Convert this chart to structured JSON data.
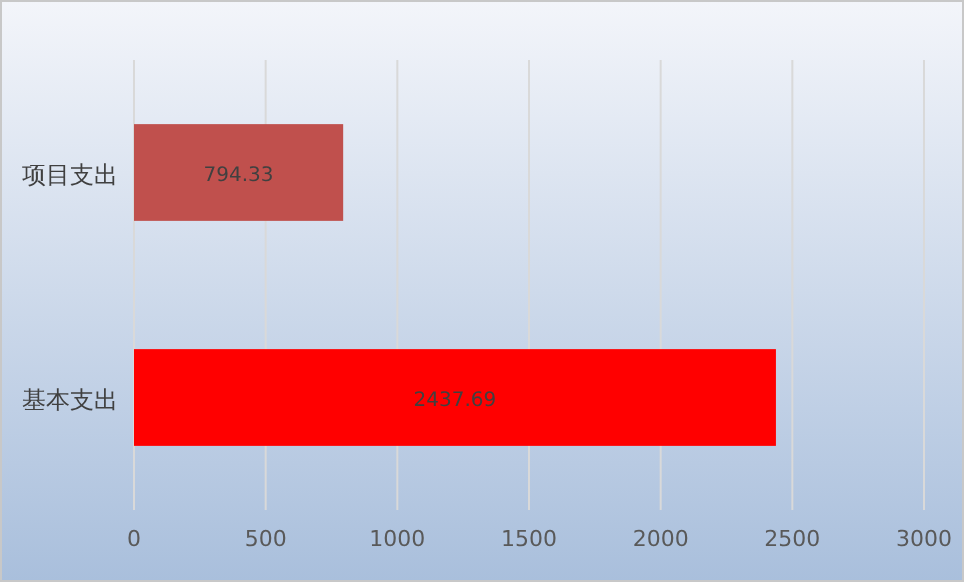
{
  "chart_data": {
    "type": "bar",
    "orientation": "horizontal",
    "categories": [
      "项目支出",
      "基本支出"
    ],
    "values": [
      794.33,
      2437.69
    ],
    "colors": [
      "#c0504d",
      "#ff0000"
    ],
    "xlim": [
      0,
      3000
    ],
    "xticks": [
      0,
      500,
      1000,
      1500,
      2000,
      2500,
      3000
    ],
    "grid": "x",
    "data_labels": true
  }
}
